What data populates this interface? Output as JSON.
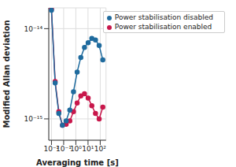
{
  "chart_data": {
    "type": "line",
    "x_label": "Averaging time [s]",
    "y_label": "Modified Allan deviation",
    "log": true,
    "grid": true,
    "legend": "upper right",
    "marker": "circle",
    "x": [
      0.01,
      0.02,
      0.04,
      0.08,
      0.16,
      0.32,
      0.64,
      1.28,
      2.56,
      5.12,
      10.24,
      20.48,
      40.96,
      81.92,
      163.84
    ],
    "xlim": [
      0.006,
      300
    ],
    "xticks": [
      {
        "value": 0.01,
        "label": "10⁻²"
      },
      {
        "value": 0.1,
        "label": "10⁻¹"
      },
      {
        "value": 1,
        "label": "10⁰"
      },
      {
        "value": 10,
        "label": "10¹"
      },
      {
        "value": 100,
        "label": "10²"
      }
    ],
    "ylim": [
      5.8e-16,
      1.7e-14
    ],
    "yticks": [
      {
        "value": 1e-15,
        "label": "10⁻¹⁵"
      },
      {
        "value": 1e-14,
        "label": "10⁻¹⁴"
      }
    ],
    "series": [
      {
        "name": "Power stabilisation enabled",
        "color": "#c8174b",
        "values": [
          1.65e-14,
          2.6e-15,
          1.2e-15,
          8.5e-16,
          8.7e-16,
          9.5e-16,
          1.2e-15,
          1.5e-15,
          1.8e-15,
          1.9e-15,
          1.7e-15,
          1.4e-15,
          1.15e-15,
          1e-15,
          1.35e-15
        ]
      },
      {
        "name": "Power stabilisation disabled",
        "color": "#1f6b9e",
        "values": [
          1.6e-14,
          2.5e-15,
          1.15e-15,
          8.5e-16,
          9.5e-16,
          1.25e-15,
          2e-15,
          3.3e-15,
          4.8e-15,
          6.2e-15,
          7e-15,
          7.8e-15,
          7.5e-15,
          6.5e-15,
          4.5e-15
        ]
      }
    ]
  }
}
